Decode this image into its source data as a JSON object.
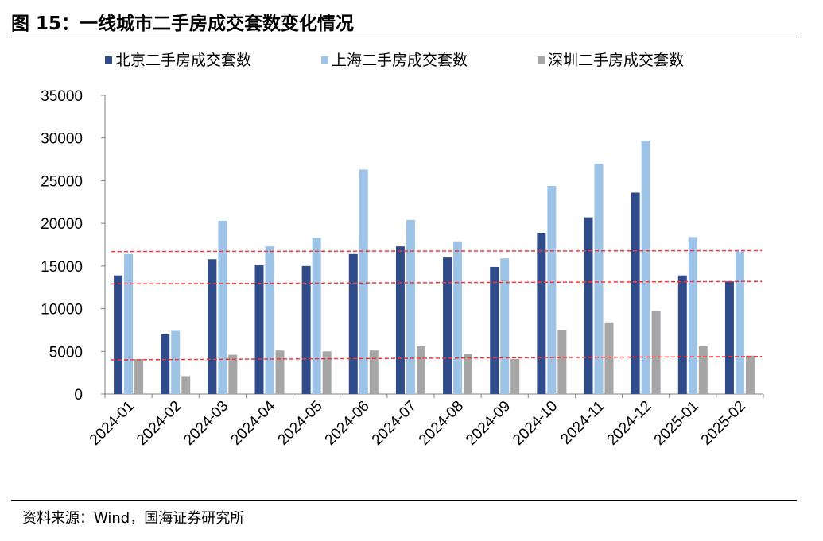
{
  "header": {
    "title": "图 15：一线城市二手房成交套数变化情况"
  },
  "footer": {
    "source": "资料来源：Wind，国海证券研究所"
  },
  "chart_data": {
    "type": "bar",
    "categories": [
      "2024-01",
      "2024-02",
      "2024-03",
      "2024-04",
      "2024-05",
      "2024-06",
      "2024-07",
      "2024-08",
      "2024-09",
      "2024-10",
      "2024-11",
      "2024-12",
      "2025-01",
      "2025-02"
    ],
    "series": [
      {
        "name": "北京二手房成交套数",
        "color": "#2f4b8a",
        "values": [
          13900,
          7000,
          15800,
          15100,
          15000,
          16400,
          17300,
          16000,
          14900,
          18900,
          20700,
          23600,
          13900,
          13200
        ]
      },
      {
        "name": "上海二手房成交套数",
        "color": "#9dc3e6",
        "values": [
          16400,
          7400,
          20300,
          17300,
          18300,
          26300,
          20400,
          17900,
          15900,
          24400,
          27000,
          29700,
          18400,
          16700
        ]
      },
      {
        "name": "深圳二手房成交套数",
        "color": "#a6a6a6",
        "values": [
          4100,
          2100,
          4600,
          5100,
          5000,
          5100,
          5600,
          4700,
          4100,
          7500,
          8400,
          9700,
          5600,
          4500
        ]
      }
    ],
    "reference_lines": [
      {
        "color": "#ff3333",
        "style": "dashed",
        "values": [
          16700,
          16800
        ]
      },
      {
        "color": "#ff3333",
        "style": "dashed",
        "values": [
          12900,
          13200
        ]
      },
      {
        "color": "#ff3333",
        "style": "dashed",
        "values": [
          4000,
          4400
        ]
      }
    ],
    "ylim": [
      0,
      35000
    ],
    "yticks": [
      0,
      5000,
      10000,
      15000,
      20000,
      25000,
      30000,
      35000
    ],
    "xlabel": "",
    "ylabel": "",
    "grid": false,
    "legend": "top",
    "xtick_rotation": -45
  }
}
